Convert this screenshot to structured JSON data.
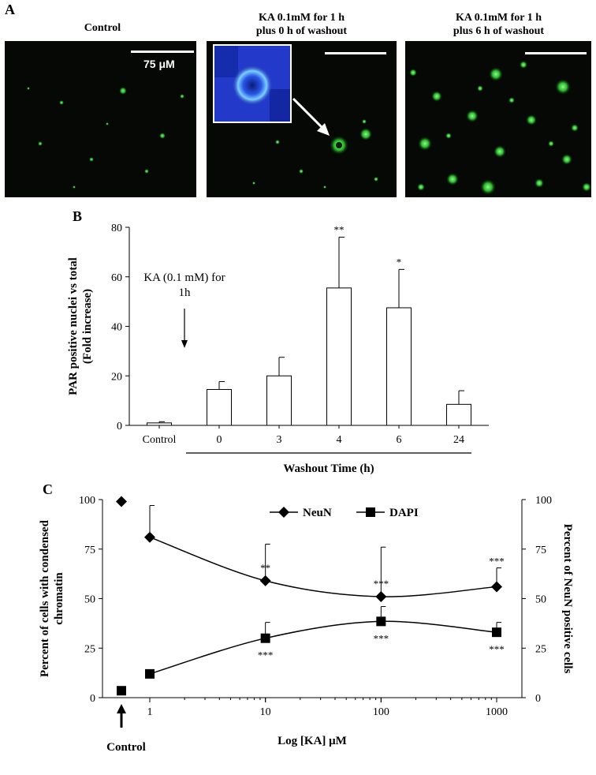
{
  "panel_a": {
    "letter": "A",
    "images": [
      {
        "title_line1": "Control",
        "title_line2": ""
      },
      {
        "title_line1": "KA 0.1mM for 1 h",
        "title_line2": "plus  0 h of washout"
      },
      {
        "title_line1": "KA 0.1mM for 1 h",
        "title_line2": "plus  6 h of washout"
      }
    ],
    "scale_label": "75 μM",
    "colors": {
      "background": "#050805",
      "stain": "#3ddc3d",
      "inset": "#1f3ae0"
    }
  },
  "panel_b": {
    "letter": "B"
  },
  "panel_c": {
    "letter": "C"
  },
  "chart_data": [
    {
      "type": "bar",
      "panel": "B",
      "categories": [
        "Control",
        "0",
        "3",
        "4",
        "6",
        "24"
      ],
      "values": [
        1,
        14.5,
        20,
        55.5,
        47.5,
        8.5
      ],
      "errors": [
        0.5,
        3.2,
        7.5,
        20.5,
        15.5,
        5.5
      ],
      "significance": [
        "",
        "",
        "",
        "**",
        "*",
        ""
      ],
      "ylabel_line1": "PAR positive nuclei vs total",
      "ylabel_line2": "(Fold increase)",
      "xlabel": "Washout Time (h)",
      "ylim": [
        0,
        80
      ],
      "yticks": [
        0,
        20,
        40,
        60,
        80
      ],
      "annotation_line1": "KA (0.1 mM) for",
      "annotation_line2": "1h"
    },
    {
      "type": "line",
      "panel": "C",
      "x_ticks": [
        1,
        10,
        100,
        1000
      ],
      "x_scale": "log",
      "xlabel": "Log [KA] μM",
      "ylabel_left_line1": "Percent of cells with condensed",
      "ylabel_left_line2": "chromatin",
      "ylabel_right": "Percent of NeuN positive cells",
      "ylim": [
        0,
        100
      ],
      "yticks": [
        0,
        25,
        50,
        75,
        100
      ],
      "control_label": "Control",
      "legend": "top-center",
      "series": [
        {
          "name": "NeuN",
          "marker": "diamond",
          "control": {
            "value": 99,
            "error": 1.5
          },
          "x": [
            1,
            10,
            100,
            1000
          ],
          "values": [
            81,
            59,
            51,
            56
          ],
          "errors_up": [
            16,
            18.5,
            25,
            9.5
          ],
          "significance": [
            "",
            "**",
            "***",
            "***"
          ]
        },
        {
          "name": "DAPI",
          "marker": "square",
          "control": {
            "value": 3.5,
            "error": 0
          },
          "x": [
            1,
            10,
            100,
            1000
          ],
          "values": [
            12,
            30,
            38.5,
            33
          ],
          "errors_up": [
            1.5,
            8,
            7.5,
            5
          ],
          "significance": [
            "",
            "***",
            "***",
            "***"
          ]
        }
      ]
    }
  ]
}
